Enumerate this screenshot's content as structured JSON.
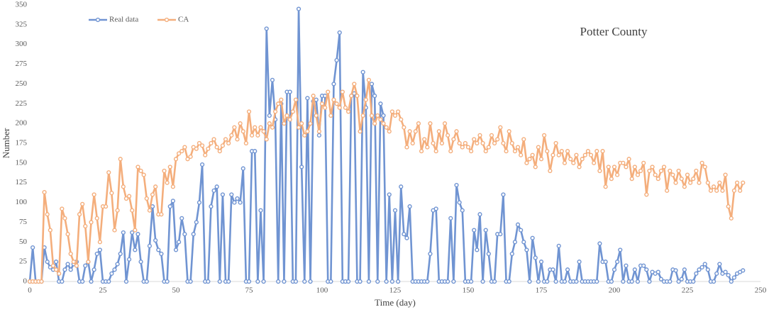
{
  "chart_data": {
    "type": "line",
    "annotation": "Potter County",
    "x_label": "Time (day)",
    "y_label": "Number",
    "legend": "upper left",
    "xlim": [
      0,
      250
    ],
    "xticks": [
      0,
      25,
      50,
      75,
      100,
      125,
      150,
      175,
      200,
      225,
      250
    ],
    "ylim": [
      0,
      350
    ],
    "yticks": [
      0,
      25,
      50,
      75,
      100,
      125,
      150,
      175,
      200,
      225,
      250,
      275,
      300,
      325,
      350
    ],
    "x": [
      0,
      1,
      2,
      3,
      4,
      5,
      6,
      7,
      8,
      9,
      10,
      11,
      12,
      13,
      14,
      15,
      16,
      17,
      18,
      19,
      20,
      21,
      22,
      23,
      24,
      25,
      26,
      27,
      28,
      29,
      30,
      31,
      32,
      33,
      34,
      35,
      36,
      37,
      38,
      39,
      40,
      41,
      42,
      43,
      44,
      45,
      46,
      47,
      48,
      49,
      50,
      51,
      52,
      53,
      54,
      55,
      56,
      57,
      58,
      59,
      60,
      61,
      62,
      63,
      64,
      65,
      66,
      67,
      68,
      69,
      70,
      71,
      72,
      73,
      74,
      75,
      76,
      77,
      78,
      79,
      80,
      81,
      82,
      83,
      84,
      85,
      86,
      87,
      88,
      89,
      90,
      91,
      92,
      93,
      94,
      95,
      96,
      97,
      98,
      99,
      100,
      101,
      102,
      103,
      104,
      105,
      106,
      107,
      108,
      109,
      110,
      111,
      112,
      113,
      114,
      115,
      116,
      117,
      118,
      119,
      120,
      121,
      122,
      123,
      124,
      125,
      126,
      127,
      128,
      129,
      130,
      131,
      132,
      133,
      134,
      135,
      136,
      137,
      138,
      139,
      140,
      141,
      142,
      143,
      144,
      145,
      146,
      147,
      148,
      149,
      150,
      151,
      152,
      153,
      154,
      155,
      156,
      157,
      158,
      159,
      160,
      161,
      162,
      163,
      164,
      165,
      166,
      167,
      168,
      169,
      170,
      171,
      172,
      173,
      174,
      175,
      176,
      177,
      178,
      179,
      180,
      181,
      182,
      183,
      184,
      185,
      186,
      187,
      188,
      189,
      190,
      191,
      192,
      193,
      194,
      195,
      196,
      197,
      198,
      199,
      200,
      201,
      202,
      203,
      204,
      205,
      206,
      207,
      208,
      209,
      210,
      211,
      212,
      213,
      214,
      215,
      216,
      217,
      218,
      219,
      220,
      221,
      222,
      223,
      224,
      225,
      226,
      227,
      228,
      229,
      230,
      231,
      232,
      233,
      234,
      235,
      236,
      237,
      238,
      239,
      240,
      241,
      242,
      243,
      244
    ],
    "series": [
      {
        "name": "Real data",
        "color": "#7094d2",
        "values": [
          0,
          43,
          0,
          0,
          0,
          43,
          25,
          18,
          15,
          25,
          0,
          0,
          15,
          22,
          15,
          22,
          25,
          0,
          0,
          20,
          25,
          0,
          15,
          35,
          40,
          0,
          0,
          0,
          10,
          15,
          22,
          35,
          62,
          0,
          28,
          62,
          40,
          60,
          25,
          0,
          0,
          45,
          95,
          52,
          40,
          35,
          0,
          0,
          95,
          102,
          40,
          50,
          80,
          60,
          0,
          0,
          60,
          75,
          100,
          148,
          0,
          0,
          95,
          115,
          120,
          0,
          110,
          0,
          0,
          110,
          100,
          105,
          100,
          143,
          0,
          0,
          165,
          165,
          0,
          90,
          0,
          320,
          210,
          255,
          205,
          0,
          225,
          0,
          240,
          240,
          0,
          0,
          345,
          145,
          0,
          232,
          0,
          228,
          230,
          185,
          235,
          235,
          0,
          0,
          250,
          280,
          315,
          0,
          0,
          0,
          235,
          238,
          0,
          0,
          265,
          220,
          0,
          250,
          235,
          0,
          225,
          210,
          0,
          110,
          0,
          90,
          0,
          120,
          60,
          55,
          95,
          0,
          0,
          0,
          0,
          0,
          0,
          35,
          90,
          92,
          0,
          0,
          0,
          0,
          80,
          0,
          122,
          100,
          90,
          0,
          0,
          0,
          65,
          40,
          85,
          0,
          65,
          35,
          0,
          0,
          60,
          60,
          110,
          0,
          0,
          35,
          50,
          72,
          65,
          50,
          40,
          0,
          55,
          30,
          0,
          25,
          0,
          0,
          15,
          15,
          0,
          45,
          0,
          0,
          15,
          0,
          0,
          0,
          25,
          0,
          0,
          0,
          0,
          0,
          0,
          48,
          25,
          25,
          0,
          0,
          15,
          25,
          40,
          0,
          20,
          0,
          0,
          15,
          0,
          20,
          20,
          15,
          0,
          12,
          10,
          12,
          3,
          0,
          0,
          0,
          15,
          14,
          0,
          3,
          15,
          0,
          0,
          0,
          10,
          15,
          18,
          22,
          15,
          0,
          0,
          10,
          22,
          10,
          12,
          8,
          0,
          5,
          10,
          12,
          14
        ]
      },
      {
        "name": "CA",
        "color": "#f4ae7c",
        "values": [
          0,
          0,
          0,
          0,
          0,
          113,
          85,
          65,
          20,
          15,
          10,
          92,
          80,
          60,
          35,
          25,
          20,
          85,
          98,
          70,
          25,
          75,
          110,
          80,
          50,
          95,
          95,
          138,
          112,
          65,
          90,
          155,
          120,
          105,
          108,
          90,
          65,
          145,
          140,
          135,
          105,
          90,
          110,
          120,
          85,
          85,
          140,
          125,
          145,
          120,
          155,
          162,
          165,
          170,
          155,
          158,
          170,
          168,
          175,
          172,
          160,
          168,
          175,
          180,
          170,
          165,
          172,
          180,
          175,
          185,
          195,
          180,
          200,
          190,
          175,
          215,
          185,
          195,
          185,
          195,
          190,
          180,
          200,
          195,
          215,
          225,
          230,
          200,
          210,
          205,
          215,
          230,
          195,
          200,
          185,
          190,
          200,
          235,
          210,
          190,
          225,
          220,
          240,
          210,
          230,
          225,
          220,
          240,
          220,
          215,
          235,
          250,
          235,
          190,
          210,
          230,
          255,
          210,
          200,
          210,
          205,
          200,
          195,
          190,
          215,
          210,
          215,
          205,
          195,
          170,
          190,
          175,
          190,
          200,
          165,
          180,
          170,
          200,
          175,
          165,
          190,
          175,
          200,
          185,
          165,
          180,
          190,
          175,
          170,
          175,
          170,
          165,
          180,
          175,
          185,
          175,
          165,
          170,
          185,
          175,
          180,
          195,
          175,
          165,
          190,
          175,
          165,
          170,
          160,
          180,
          150,
          155,
          160,
          145,
          170,
          155,
          185,
          165,
          140,
          160,
          175,
          160,
          165,
          150,
          165,
          155,
          150,
          160,
          145,
          155,
          160,
          165,
          160,
          150,
          165,
          140,
          165,
          120,
          145,
          130,
          145,
          135,
          150,
          150,
          145,
          155,
          130,
          145,
          135,
          140,
          150,
          110,
          140,
          145,
          135,
          130,
          140,
          145,
          115,
          140,
          135,
          125,
          140,
          130,
          120,
          135,
          125,
          130,
          140,
          125,
          150,
          145,
          125,
          115,
          120,
          115,
          125,
          115,
          135,
          95,
          80,
          115,
          125,
          115,
          125
        ]
      }
    ]
  }
}
